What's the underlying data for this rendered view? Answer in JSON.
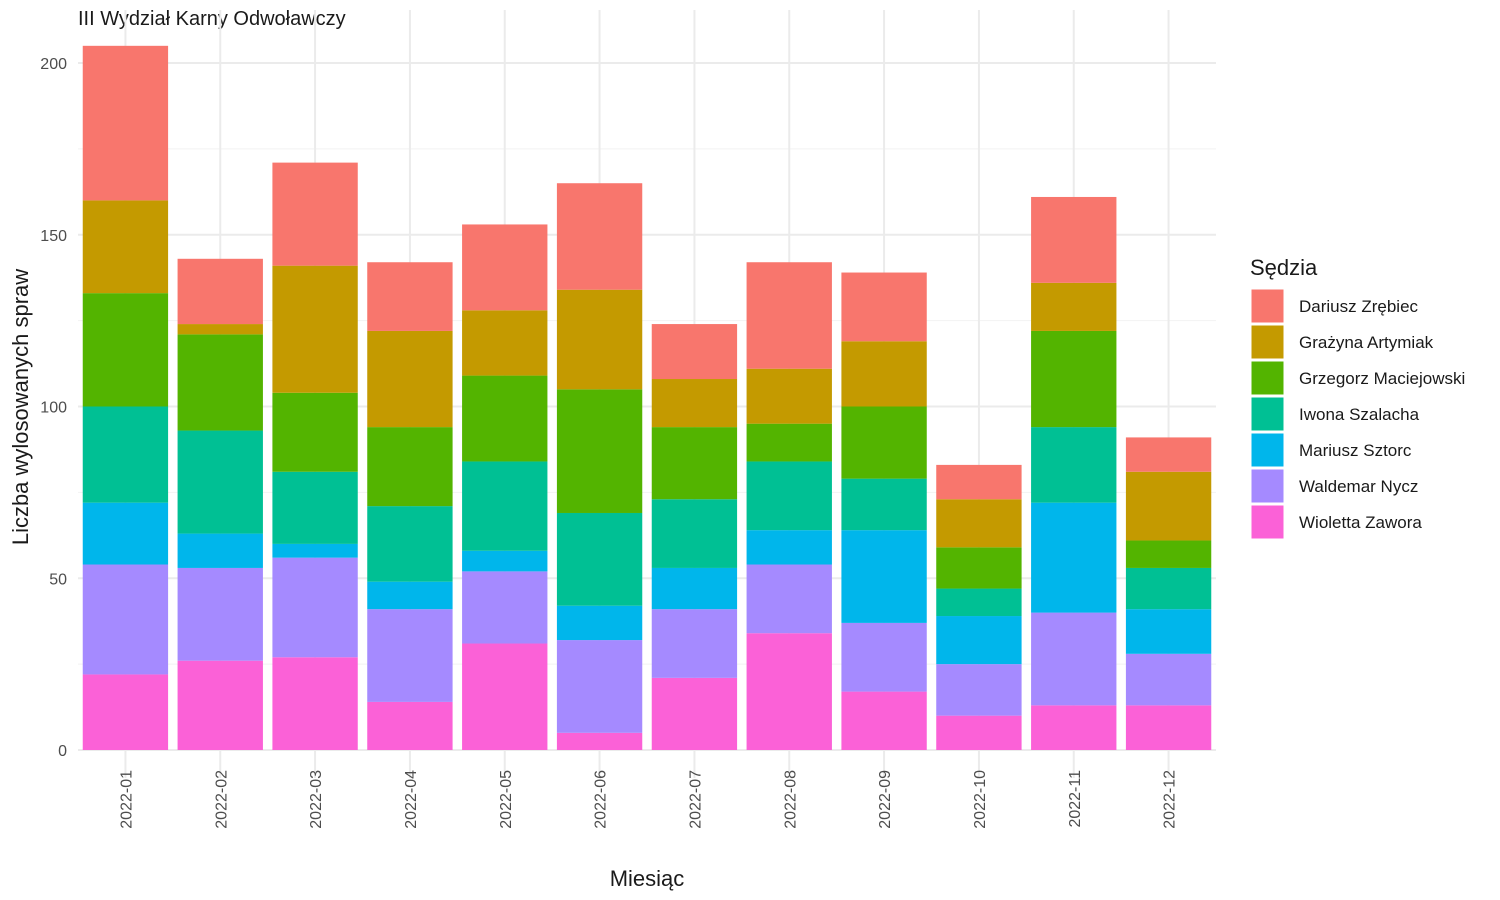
{
  "chart_data": {
    "type": "bar",
    "stacked": true,
    "title": "III Wydział Karny Odwoławczy",
    "xlabel": "Miesiąc",
    "ylabel": "Liczba wylosowanych spraw",
    "ylim": [
      0,
      205
    ],
    "yticks": [
      0,
      50,
      100,
      150,
      200
    ],
    "grid": true,
    "legend_title": "Sędzia",
    "legend_position": "right",
    "categories": [
      "2022-01",
      "2022-02",
      "2022-03",
      "2022-04",
      "2022-05",
      "2022-06",
      "2022-07",
      "2022-08",
      "2022-09",
      "2022-10",
      "2022-11",
      "2022-12"
    ],
    "series": [
      {
        "name": "Wioletta Zawora",
        "color": "#FB61D7",
        "values": [
          22,
          26,
          27,
          14,
          31,
          5,
          21,
          34,
          17,
          10,
          13,
          13
        ]
      },
      {
        "name": "Waldemar Nycz",
        "color": "#A58AFF",
        "values": [
          32,
          27,
          29,
          27,
          21,
          27,
          20,
          20,
          20,
          15,
          27,
          15
        ]
      },
      {
        "name": "Mariusz Sztorc",
        "color": "#00B6EB",
        "values": [
          18,
          10,
          4,
          8,
          6,
          10,
          12,
          10,
          27,
          14,
          32,
          13
        ]
      },
      {
        "name": "Iwona Szalacha",
        "color": "#00C094",
        "values": [
          28,
          30,
          21,
          22,
          26,
          27,
          20,
          20,
          15,
          8,
          22,
          12
        ]
      },
      {
        "name": "Grzegorz Maciejowski",
        "color": "#53B400",
        "values": [
          33,
          28,
          23,
          23,
          25,
          36,
          21,
          11,
          21,
          12,
          28,
          8
        ]
      },
      {
        "name": "Grażyna Artymiak",
        "color": "#C49A00",
        "values": [
          27,
          3,
          37,
          28,
          19,
          29,
          14,
          16,
          19,
          14,
          14,
          20
        ]
      },
      {
        "name": "Dariusz Zrębiec",
        "color": "#F8766D",
        "values": [
          45,
          19,
          30,
          20,
          25,
          31,
          16,
          31,
          20,
          10,
          25,
          10
        ]
      }
    ],
    "legend_order": [
      "Dariusz Zrębiec",
      "Grażyna Artymiak",
      "Grzegorz Maciejowski",
      "Iwona Szalacha",
      "Mariusz Sztorc",
      "Waldemar Nycz",
      "Wioletta Zawora"
    ]
  }
}
